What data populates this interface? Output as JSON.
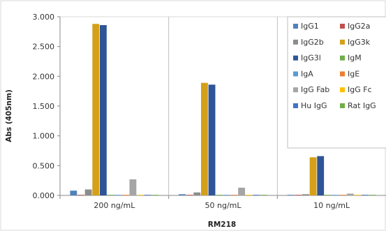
{
  "chart_data": {
    "type": "bar",
    "title": "",
    "xlabel": "RM218",
    "ylabel": "Abs (405nm)",
    "ylim": [
      0,
      3.0
    ],
    "yticks": [
      "0.000",
      "0.500",
      "1.000",
      "1.500",
      "2.000",
      "2.500",
      "3.000"
    ],
    "categories": [
      "200 ng/mL",
      "50 ng/mL",
      "10 ng/mL"
    ],
    "grid": "vertical",
    "legend_position": "right",
    "series": [
      {
        "name": "IgG1",
        "color": "#4f81bd",
        "values": [
          0.08,
          0.02,
          0.01
        ]
      },
      {
        "name": "IgG2a",
        "color": "#c0504d",
        "values": [
          0.01,
          0.01,
          0.01
        ]
      },
      {
        "name": "IgG2b",
        "color": "#8c8c8c",
        "values": [
          0.1,
          0.05,
          0.02
        ]
      },
      {
        "name": "IgG3k",
        "color": "#d4a017",
        "values": [
          2.88,
          1.89,
          0.64
        ]
      },
      {
        "name": "IgG3l",
        "color": "#2e5597",
        "values": [
          2.86,
          1.86,
          0.66
        ]
      },
      {
        "name": "IgM",
        "color": "#70ad47",
        "values": [
          0.01,
          0.01,
          0.01
        ]
      },
      {
        "name": "IgA",
        "color": "#5b9bd5",
        "values": [
          0.01,
          0.01,
          0.01
        ]
      },
      {
        "name": "IgE",
        "color": "#ed7d31",
        "values": [
          0.01,
          0.01,
          0.01
        ]
      },
      {
        "name": "IgG Fab",
        "color": "#a5a5a5",
        "values": [
          0.27,
          0.13,
          0.03
        ]
      },
      {
        "name": "IgG Fc",
        "color": "#ffc000",
        "values": [
          0.01,
          0.01,
          0.01
        ]
      },
      {
        "name": "Hu IgG",
        "color": "#4472c4",
        "values": [
          0.01,
          0.01,
          0.01
        ]
      },
      {
        "name": "Rat IgG",
        "color": "#70ad47",
        "values": [
          0.01,
          0.01,
          0.01
        ]
      }
    ]
  }
}
